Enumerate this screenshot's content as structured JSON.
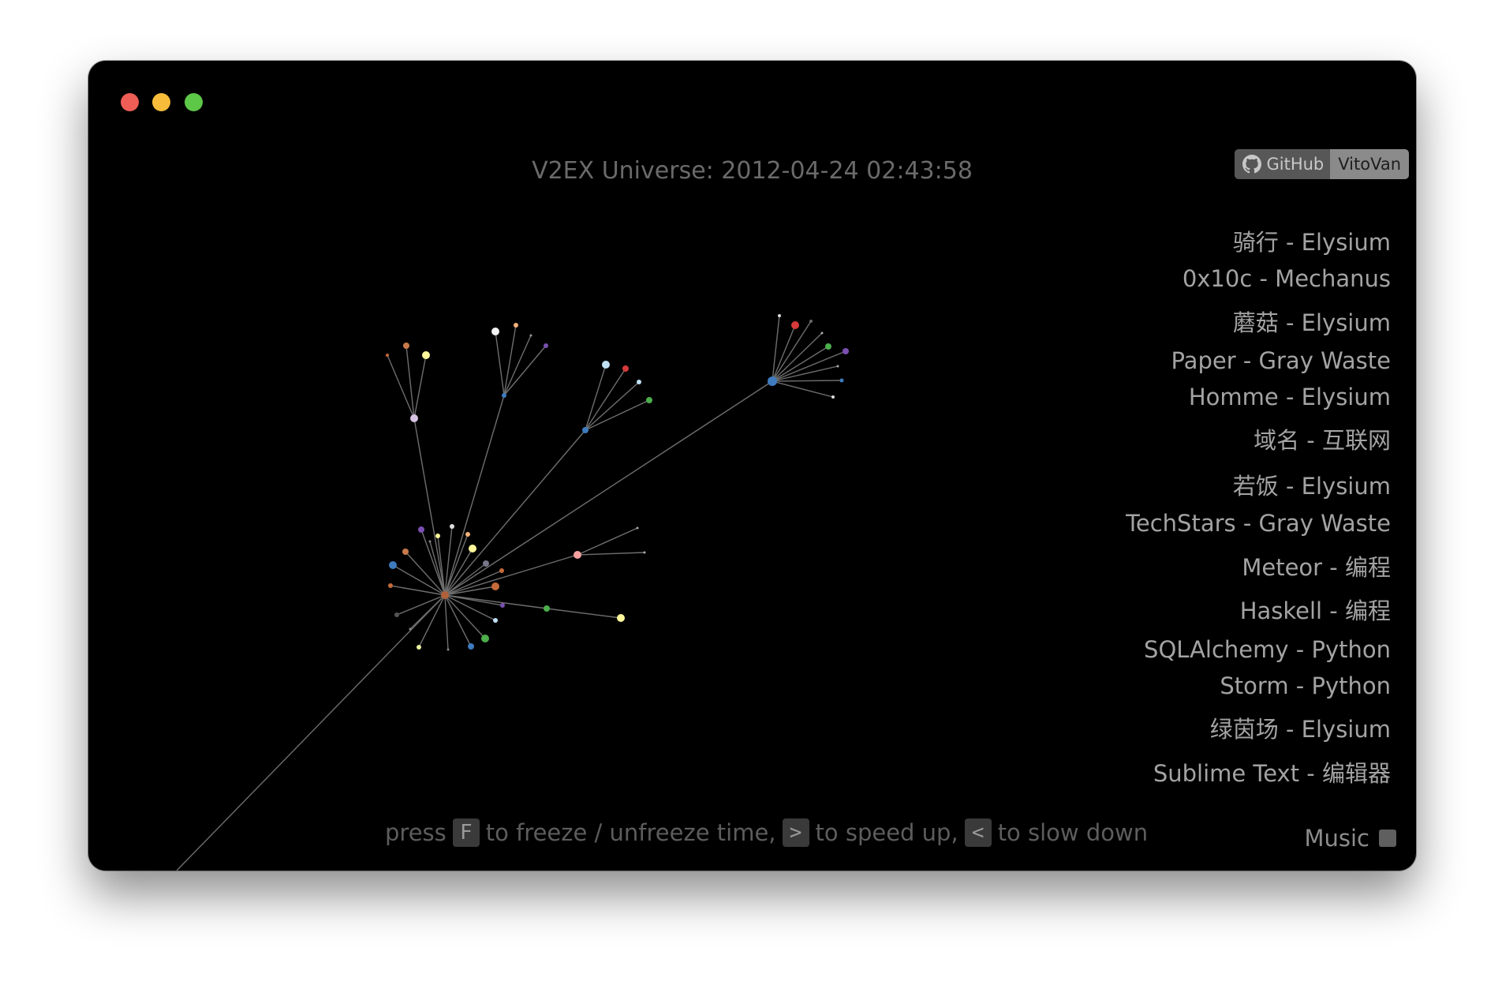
{
  "window": {
    "title": "V2EX Universe: 2012-04-24 02:43:58"
  },
  "github_badge": {
    "left_label": "GitHub",
    "right_label": "VitoVan",
    "icon": "github-icon"
  },
  "node_list": [
    "骑行 - Elysium",
    "0x10c - Mechanus",
    "蘑菇 - Elysium",
    "Paper - Gray Waste",
    "Homme - Elysium",
    "域名 - 互联网",
    "若饭 - Elysium",
    "TechStars - Gray Waste",
    "Meteor - 编程",
    "Haskell - 编程",
    "SQLAlchemy - Python",
    "Storm - Python",
    "绿茵场 - Elysium",
    "Sublime Text - 编辑器"
  ],
  "hint": {
    "press": "press",
    "key_freeze": "F",
    "freeze_text": "to freeze / unfreeze time,",
    "key_speed": ">",
    "speed_text": "to speed up,",
    "key_slow": "<",
    "slow_text": "to slow down"
  },
  "music": {
    "label": "Music",
    "checked": false
  },
  "colors": {
    "background": "#000000",
    "edge": "#6e6e6e",
    "text": "#a3a3a3"
  }
}
